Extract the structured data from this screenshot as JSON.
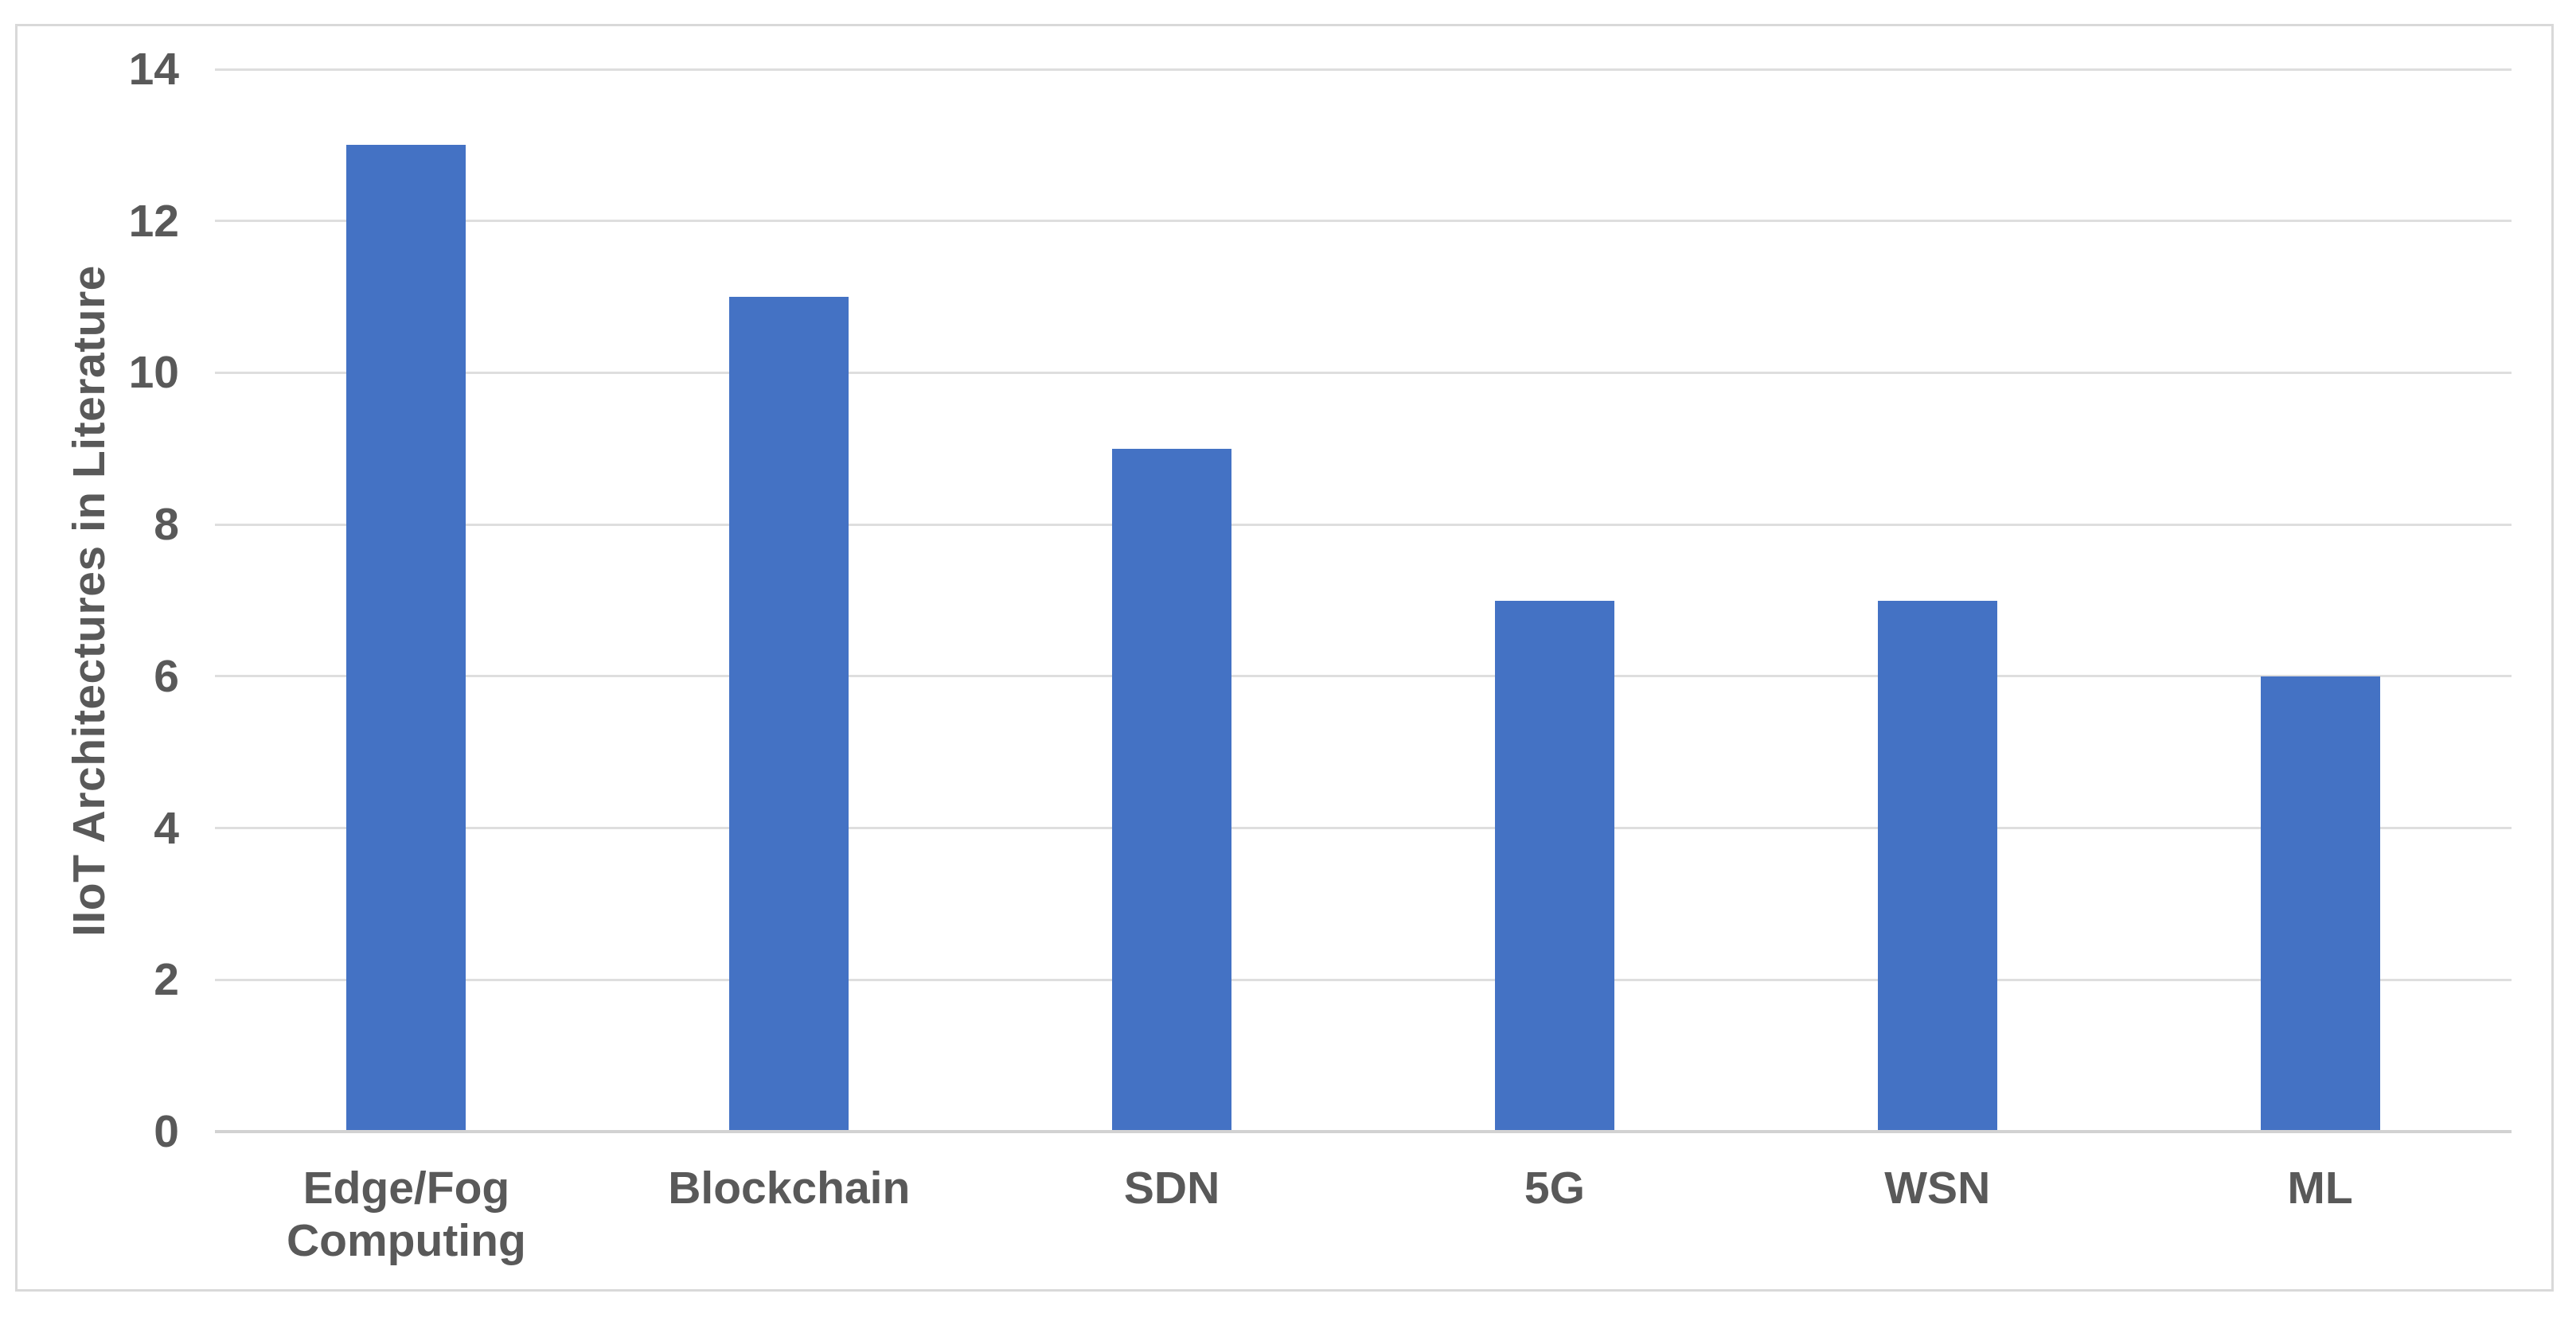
{
  "chart_data": {
    "type": "bar",
    "title": "",
    "xlabel": "",
    "ylabel": "IIoT Architectures in Literature",
    "categories": [
      "Edge/Fog Computing",
      "Blockchain",
      "SDN",
      "5G",
      "WSN",
      "ML"
    ],
    "values": [
      13,
      11,
      9,
      7,
      7,
      6
    ],
    "ylim": [
      0,
      14
    ],
    "yticks": [
      0,
      2,
      4,
      6,
      8,
      10,
      12,
      14
    ],
    "grid": "horizontal",
    "legend_position": "none",
    "colors": {
      "bar": "#4472C4",
      "label_text": "#595959",
      "gridline": "#DEDEDE",
      "axis_line": "#D2D2D2",
      "frame_border": "#D9D9D9",
      "background": "#FFFFFF"
    }
  }
}
